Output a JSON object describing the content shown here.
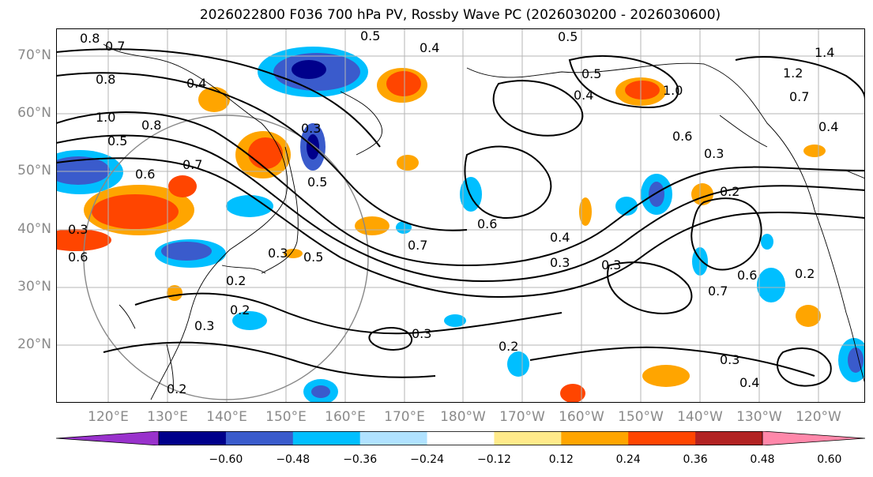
{
  "title": "2026022800 F036 700 hPa PV, Rossby Wave PC (2026030200 - 2026030600)",
  "lat_labels": [
    "70°N",
    "60°N",
    "50°N",
    "40°N",
    "30°N",
    "20°N"
  ],
  "lon_labels": [
    "120°E",
    "130°E",
    "140°E",
    "150°E",
    "160°E",
    "170°E",
    "180°W",
    "170°W",
    "160°W",
    "150°W",
    "140°W",
    "130°W",
    "120°W"
  ],
  "colorbar": {
    "colors": [
      "#9932cc",
      "#00008b",
      "#3a5bcc",
      "#00bfff",
      "#b0e2ff",
      "#ffffff",
      "#ffea8a",
      "#ffa500",
      "#ff4500",
      "#b22222",
      "#ff88aa"
    ],
    "ticks": [
      "−0.60",
      "−0.48",
      "−0.36",
      "−0.24",
      "−0.12",
      "0.12",
      "0.24",
      "0.36",
      "0.48",
      "0.60"
    ]
  },
  "contour_labels": [
    "0.8",
    "0.7",
    "0.8",
    "0.5",
    "0.4",
    "0.5",
    "0.5",
    "0.4",
    "1.0",
    "1.2",
    "0.7",
    "0.4",
    "1.0",
    "0.5",
    "0.8",
    "0.6",
    "0.3",
    "0.6",
    "0.7",
    "0.3",
    "0.3",
    "0.2",
    "0.2",
    "0.3",
    "0.5",
    "0.6",
    "0.7",
    "0.5",
    "0.6",
    "0.4",
    "0.3",
    "0.3",
    "0.7",
    "0.6",
    "0.2",
    "0.3",
    "0.2",
    "0.3",
    "0.4",
    "0.3",
    "0.2",
    "1.4",
    "0.4",
    "0.2"
  ]
}
